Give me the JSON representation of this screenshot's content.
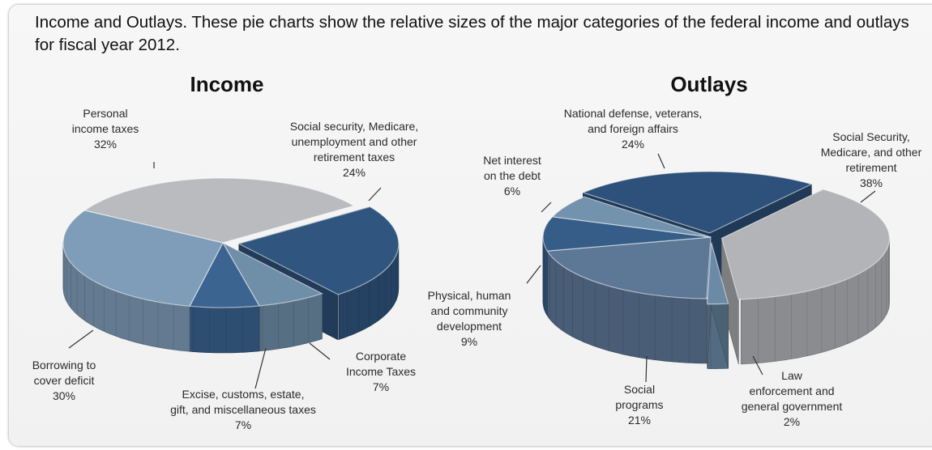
{
  "caption": "Income and Outlays. These pie charts show the relative sizes of the major categories of the federal income and outlays for fiscal year 2012.",
  "chart_data": [
    {
      "type": "pie",
      "title": "Income",
      "slices": [
        {
          "label_lines": [
            "Personal",
            "income taxes",
            "32%"
          ],
          "value": 32,
          "color": "#b9bbbf"
        },
        {
          "label_lines": [
            "Social security, Medicare,",
            "unemployment  and other",
            "retirement taxes",
            "24%"
          ],
          "value": 24,
          "color": "#30557e"
        },
        {
          "label_lines": [
            "Corporate",
            "Income Taxes",
            "7%"
          ],
          "value": 7,
          "color": "#6f8ea7"
        },
        {
          "label_lines": [
            "Excise, customs, estate,",
            "gift, and miscellaneous taxes",
            "7%"
          ],
          "value": 7,
          "color": "#3b6491"
        },
        {
          "label_lines": [
            "Borrowing to",
            "cover deficit",
            "30%"
          ],
          "value": 30,
          "color": "#7f9db8"
        }
      ]
    },
    {
      "type": "pie",
      "title": "Outlays",
      "slices": [
        {
          "label_lines": [
            "National defense, veterans,",
            "and foreign affairs",
            "24%"
          ],
          "value": 24,
          "color": "#2d517b"
        },
        {
          "label_lines": [
            "Social Security,",
            "Medicare, and other",
            "retirement",
            "38%"
          ],
          "value": 38,
          "color": "#b2b4b7"
        },
        {
          "label_lines": [
            "Law",
            "enforcement and",
            "general government",
            "2%"
          ],
          "value": 2,
          "color": "#6b8aa6"
        },
        {
          "label_lines": [
            "Social",
            "programs",
            "21%"
          ],
          "value": 21,
          "color": "#5d7797"
        },
        {
          "label_lines": [
            "Physical, human",
            "and community",
            "development",
            "9%"
          ],
          "value": 9,
          "color": "#365c88"
        },
        {
          "label_lines": [
            "Net interest",
            "on the debt",
            "6%"
          ],
          "value": 6,
          "color": "#7392ad"
        }
      ]
    }
  ]
}
